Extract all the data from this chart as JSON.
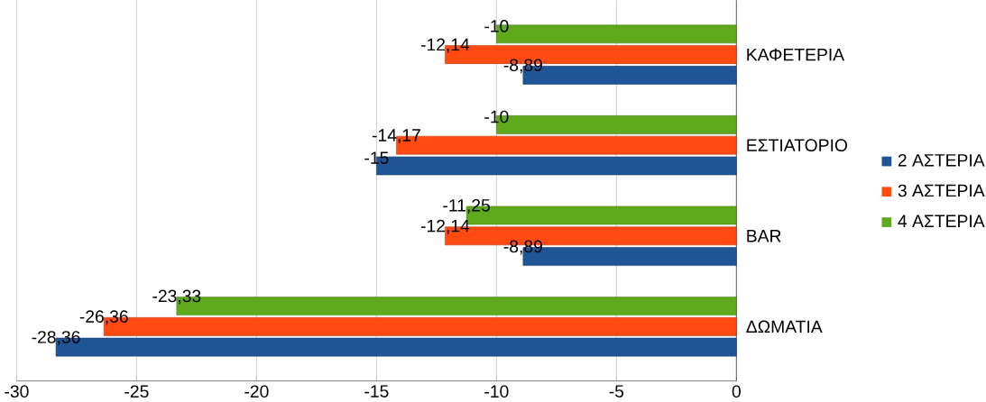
{
  "chart_data": {
    "type": "bar",
    "orientation": "horizontal",
    "categories": [
      "ΚΑΦΕΤΕΡΙΑ",
      "ΕΣΤΙΑΤΟΡΙΟ",
      "BAR",
      "ΔΩΜΑΤΙΑ"
    ],
    "series": [
      {
        "name": "2 ΑΣΤΕΡΙΑ",
        "color": "#1f5597",
        "values": [
          -8.89,
          -15,
          -8.89,
          -28.36
        ],
        "value_labels": [
          "-8,89",
          "-15",
          "-8,89",
          "-28,36"
        ]
      },
      {
        "name": "3 ΑΣΤΕΡΙΑ",
        "color": "#ff4a12",
        "values": [
          -12.14,
          -14.17,
          -12.14,
          -26.36
        ],
        "value_labels": [
          "-12,14",
          "-14,17",
          "-12,14",
          "-26,36"
        ]
      },
      {
        "name": "4 ΑΣΤΕΡΙΑ",
        "color": "#5faa1c",
        "values": [
          -10,
          -10,
          -11.25,
          -23.33
        ],
        "value_labels": [
          "-10",
          "-10",
          "-11,25",
          "-23,33"
        ]
      }
    ],
    "xlim": [
      -30,
      0
    ],
    "xticks": [
      -30,
      -25,
      -20,
      -15,
      -10,
      -5,
      0
    ],
    "grid": "x",
    "legend": "right"
  }
}
